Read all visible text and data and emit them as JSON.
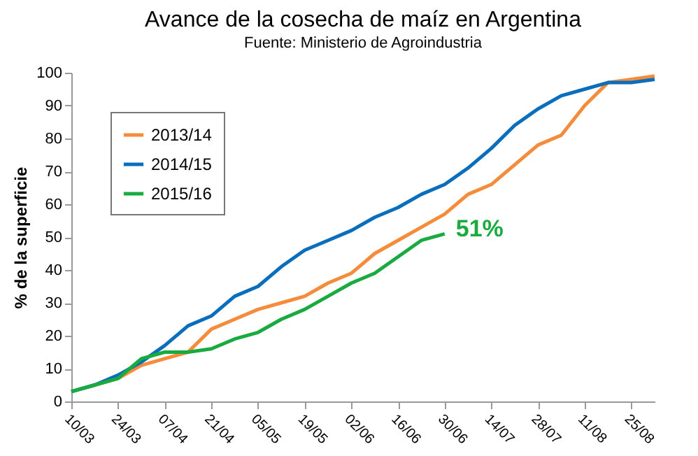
{
  "chart_data": {
    "type": "line",
    "title": "Avance de la cosecha de maíz en Argentina",
    "subtitle": "Fuente: Ministerio de Agroindustria",
    "ylabel": "% de la superficie",
    "categories": [
      "10/03",
      null,
      "24/03",
      null,
      "07/04",
      null,
      "21/04",
      null,
      "05/05",
      null,
      "19/05",
      null,
      "02/06",
      null,
      "16/06",
      null,
      "30/06",
      null,
      "14/07",
      null,
      "28/07",
      null,
      "11/08",
      null,
      "25/08",
      null
    ],
    "series": [
      {
        "name": "2013/14",
        "color": "#f58c3c",
        "values": [
          3,
          5,
          7,
          11,
          13,
          15,
          22,
          25,
          28,
          30,
          32,
          36,
          39,
          45,
          49,
          53,
          57,
          63,
          66,
          72,
          78,
          81,
          90,
          97,
          98,
          99
        ]
      },
      {
        "name": "2014/15",
        "color": "#0a6ebd",
        "values": [
          3,
          5,
          8,
          12,
          17,
          23,
          26,
          32,
          35,
          41,
          46,
          49,
          52,
          56,
          59,
          63,
          66,
          71,
          77,
          84,
          89,
          93,
          95,
          97,
          97,
          98
        ]
      },
      {
        "name": "2015/16",
        "color": "#1aab40",
        "values": [
          3,
          5,
          7,
          13,
          15,
          15,
          16,
          19,
          21,
          25,
          28,
          32,
          36,
          39,
          44,
          49,
          51,
          null,
          null,
          null,
          null,
          null,
          null,
          null,
          null,
          null
        ]
      }
    ],
    "annotations": [
      {
        "text": "51%",
        "x": "30/06",
        "y": 51
      }
    ],
    "ylim": [
      0,
      100
    ],
    "yticks": [
      0,
      10,
      20,
      30,
      40,
      50,
      60,
      70,
      80,
      90,
      100
    ],
    "grid": false,
    "legend": "top left"
  }
}
